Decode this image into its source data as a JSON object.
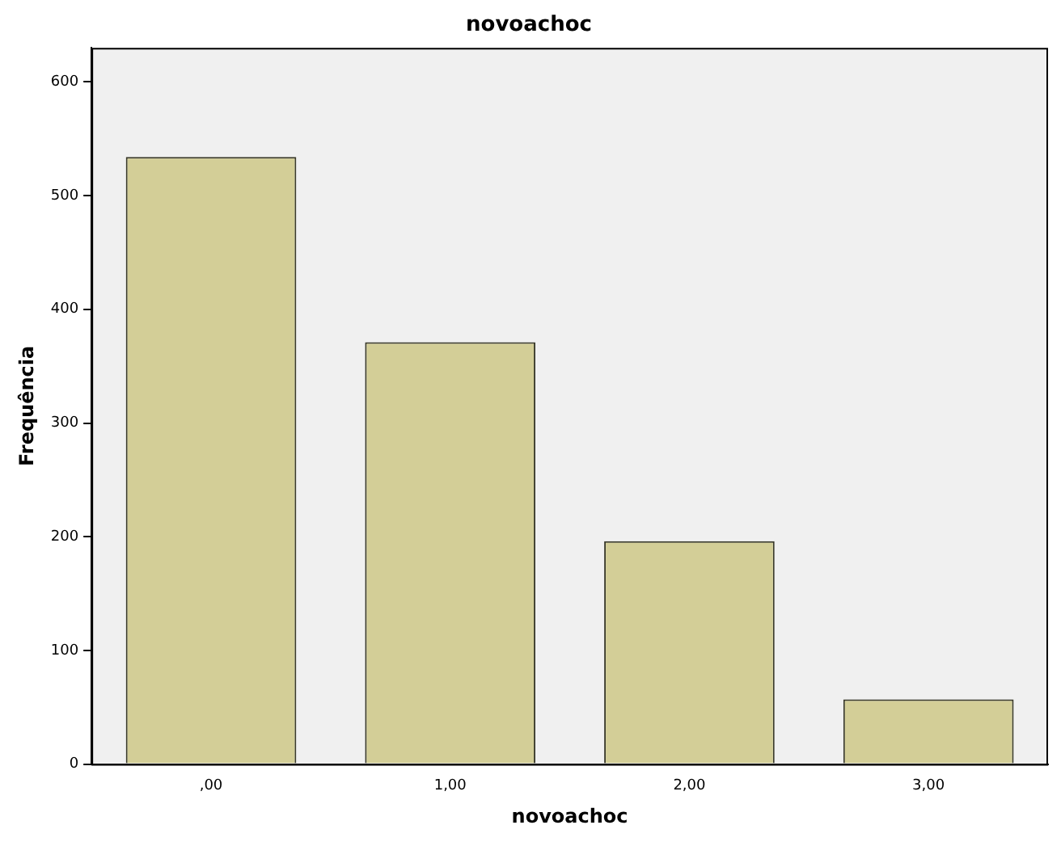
{
  "chart_data": {
    "type": "bar",
    "title": "novoachoc",
    "xlabel": "novoachoc",
    "ylabel": "Frequência",
    "categories": [
      ",00",
      "1,00",
      "2,00",
      "3,00"
    ],
    "values": [
      534,
      371,
      196,
      57
    ],
    "color": "#d3ce97",
    "ylim": [
      0,
      630
    ],
    "yticks": [
      0,
      100,
      200,
      300,
      400,
      500,
      600
    ],
    "grid": false,
    "legend": false
  }
}
